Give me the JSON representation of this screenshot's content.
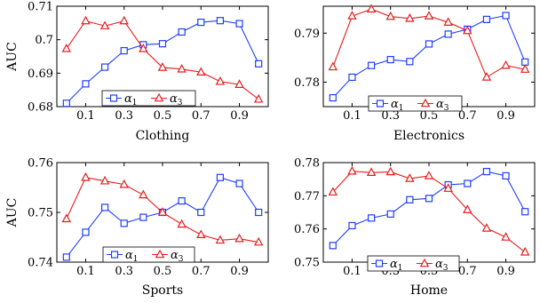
{
  "colors": {
    "alpha1": "#1f3fff",
    "alpha3": "#e81c1c",
    "axis": "#000000"
  },
  "chart_data": [
    {
      "type": "line",
      "title": "",
      "xlabel": "Clothing",
      "ylabel": "AUC",
      "x": [
        0.0,
        0.1,
        0.2,
        0.3,
        0.4,
        0.5,
        0.6,
        0.7,
        0.8,
        0.9,
        1.0
      ],
      "xticks": [
        0.1,
        0.3,
        0.5,
        0.7,
        0.9
      ],
      "xtick_labels": [
        "0.1",
        "0.3",
        "0.5",
        "0.7",
        "0.9"
      ],
      "xlim": [
        -0.05,
        1.05
      ],
      "ylim": [
        0.68,
        0.71
      ],
      "yticks": [
        0.68,
        0.69,
        0.7,
        0.71
      ],
      "ytick_labels": [
        "0.68",
        "0.69",
        "0.7",
        "0.71"
      ],
      "legend_position": "bottom-center",
      "series": [
        {
          "name": "α1",
          "label_base": "α",
          "label_sub": "1",
          "marker": "square",
          "values": [
            0.681,
            0.6868,
            0.6918,
            0.6967,
            0.6985,
            0.6988,
            0.7023,
            0.7052,
            0.7057,
            0.7048,
            0.6928
          ]
        },
        {
          "name": "α3",
          "label_base": "α",
          "label_sub": "3",
          "marker": "triangle",
          "values": [
            0.6973,
            0.7056,
            0.7041,
            0.7056,
            0.6973,
            0.6917,
            0.6912,
            0.6903,
            0.6875,
            0.6866,
            0.6822
          ]
        }
      ]
    },
    {
      "type": "line",
      "title": "",
      "xlabel": "Electronics",
      "ylabel": "",
      "x": [
        0.0,
        0.1,
        0.2,
        0.3,
        0.4,
        0.5,
        0.6,
        0.7,
        0.8,
        0.9,
        1.0
      ],
      "xticks": [
        0.1,
        0.3,
        0.5,
        0.7,
        0.9
      ],
      "xtick_labels": [
        "0.1",
        "0.3",
        "0.5",
        "0.7",
        "0.9"
      ],
      "xlim": [
        -0.05,
        1.05
      ],
      "ylim": [
        0.775,
        0.7955
      ],
      "yticks": [
        0.78,
        0.79
      ],
      "ytick_labels": [
        "0.78",
        "0.79"
      ],
      "legend_position": "bottom-center",
      "series": [
        {
          "name": "α1",
          "label_base": "α",
          "label_sub": "1",
          "marker": "square",
          "values": [
            0.7768,
            0.781,
            0.7834,
            0.7846,
            0.7842,
            0.7878,
            0.7898,
            0.7908,
            0.7928,
            0.7936,
            0.7841
          ]
        },
        {
          "name": "α3",
          "label_base": "α",
          "label_sub": "3",
          "marker": "triangle",
          "values": [
            0.7831,
            0.7935,
            0.7949,
            0.7934,
            0.793,
            0.7935,
            0.7922,
            0.7905,
            0.781,
            0.7834,
            0.7826
          ]
        }
      ]
    },
    {
      "type": "line",
      "title": "",
      "xlabel": "Sports",
      "ylabel": "AUC",
      "x": [
        0.0,
        0.1,
        0.2,
        0.3,
        0.4,
        0.5,
        0.6,
        0.7,
        0.8,
        0.9,
        1.0
      ],
      "xticks": [
        0.1,
        0.3,
        0.5,
        0.7,
        0.9
      ],
      "xtick_labels": [
        "0.1",
        "0.3",
        "0.5",
        "0.7",
        "0.9"
      ],
      "xlim": [
        -0.05,
        1.05
      ],
      "ylim": [
        0.74,
        0.76
      ],
      "yticks": [
        0.74,
        0.75,
        0.76
      ],
      "ytick_labels": [
        "0.74",
        "0.75",
        "0.76"
      ],
      "legend_position": "bottom-center",
      "series": [
        {
          "name": "α1",
          "label_base": "α",
          "label_sub": "1",
          "marker": "square",
          "values": [
            0.741,
            0.746,
            0.751,
            0.7478,
            0.749,
            0.75,
            0.7523,
            0.75,
            0.757,
            0.7558,
            0.75
          ]
        },
        {
          "name": "α3",
          "label_base": "α",
          "label_sub": "3",
          "marker": "triangle",
          "values": [
            0.7487,
            0.757,
            0.7563,
            0.7556,
            0.7535,
            0.75,
            0.7476,
            0.7455,
            0.7444,
            0.7447,
            0.744
          ]
        }
      ]
    },
    {
      "type": "line",
      "title": "",
      "xlabel": "Home",
      "ylabel": "",
      "x": [
        0.0,
        0.1,
        0.2,
        0.3,
        0.4,
        0.5,
        0.6,
        0.7,
        0.8,
        0.9,
        1.0
      ],
      "xticks": [
        0.1,
        0.3,
        0.5,
        0.7,
        0.9
      ],
      "xtick_labels": [
        "0.1",
        "0.3",
        "0.5",
        "0.7",
        "0.9"
      ],
      "xlim": [
        -0.05,
        1.05
      ],
      "ylim": [
        0.75,
        0.78
      ],
      "yticks": [
        0.75,
        0.76,
        0.77,
        0.78
      ],
      "ytick_labels": [
        "0.75",
        "0.76",
        "0.77",
        "0.78"
      ],
      "legend_position": "bottom-center",
      "series": [
        {
          "name": "α1",
          "label_base": "α",
          "label_sub": "1",
          "marker": "square",
          "values": [
            0.755,
            0.761,
            0.7633,
            0.7645,
            0.7688,
            0.7692,
            0.7733,
            0.7737,
            0.7773,
            0.776,
            0.7652
          ]
        },
        {
          "name": "α3",
          "label_base": "α",
          "label_sub": "3",
          "marker": "triangle",
          "values": [
            0.7711,
            0.7774,
            0.777,
            0.7772,
            0.7752,
            0.776,
            0.7722,
            0.7658,
            0.7602,
            0.7575,
            0.753
          ]
        }
      ]
    }
  ]
}
